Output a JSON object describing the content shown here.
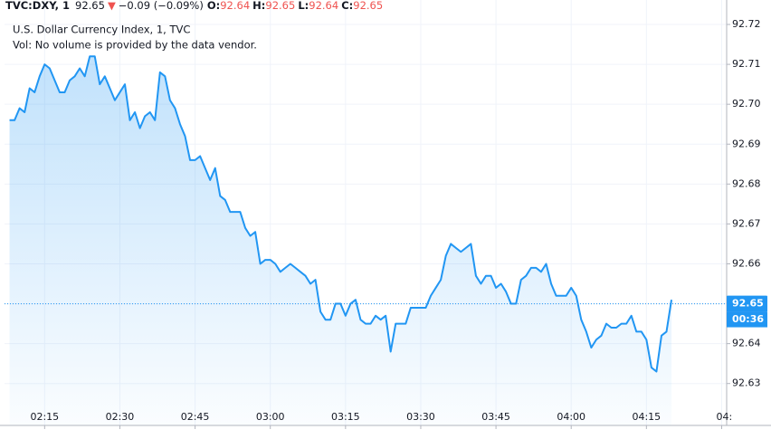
{
  "chart_data": {
    "type": "area",
    "symbol": "TVC:DXY, 1",
    "price": "92.65",
    "change_arrow": "▼",
    "change": "−0.09 (−0.09%)",
    "ohlc": [
      {
        "label": "O:",
        "value": 92.64
      },
      {
        "label": "H:",
        "value": 92.65
      },
      {
        "label": "L:",
        "value": 92.64
      },
      {
        "label": "C:",
        "value": 92.65
      }
    ],
    "volume_note": "Vol: No volume is provided by the data vendor.",
    "series": [
      {
        "name": "U.S. Dollar Currency Index, 1, TVC",
        "color": "#2196f3",
        "x": [
          "02:08",
          "02:09",
          "02:10",
          "02:11",
          "02:12",
          "02:13",
          "02:14",
          "02:15",
          "02:16",
          "02:17",
          "02:18",
          "02:19",
          "02:20",
          "02:21",
          "02:22",
          "02:23",
          "02:24",
          "02:25",
          "02:26",
          "02:27",
          "02:28",
          "02:29",
          "02:30",
          "02:31",
          "02:32",
          "02:33",
          "02:34",
          "02:35",
          "02:36",
          "02:37",
          "02:38",
          "02:39",
          "02:40",
          "02:41",
          "02:42",
          "02:43",
          "02:44",
          "02:45",
          "02:46",
          "02:47",
          "02:48",
          "02:49",
          "02:50",
          "02:51",
          "02:52",
          "02:53",
          "02:54",
          "02:55",
          "02:56",
          "02:57",
          "02:58",
          "02:59",
          "03:00",
          "03:01",
          "03:02",
          "03:03",
          "03:04",
          "03:05",
          "03:06",
          "03:07",
          "03:08",
          "03:09",
          "03:10",
          "03:11",
          "03:12",
          "03:13",
          "03:14",
          "03:15",
          "03:16",
          "03:17",
          "03:18",
          "03:19",
          "03:20",
          "03:21",
          "03:22",
          "03:23",
          "03:24",
          "03:25",
          "03:26",
          "03:27",
          "03:28",
          "03:29",
          "03:30",
          "03:31",
          "03:32",
          "03:33",
          "03:34",
          "03:35",
          "03:36",
          "03:37",
          "03:38",
          "03:39",
          "03:40",
          "03:41",
          "03:42",
          "03:43",
          "03:44",
          "03:45",
          "03:46",
          "03:47",
          "03:48",
          "03:49",
          "03:50",
          "03:51",
          "03:52",
          "03:53",
          "03:54",
          "03:55",
          "03:56",
          "03:57",
          "03:58",
          "03:59",
          "04:00",
          "04:01",
          "04:02",
          "04:03",
          "04:04",
          "04:05",
          "04:06",
          "04:07",
          "04:08",
          "04:09",
          "04:10",
          "04:11",
          "04:12",
          "04:13",
          "04:14",
          "04:15",
          "04:16",
          "04:17",
          "04:18",
          "04:19",
          "04:20"
        ],
        "values": [
          92.696,
          92.696,
          92.699,
          92.698,
          92.704,
          92.703,
          92.707,
          92.71,
          92.709,
          92.706,
          92.703,
          92.703,
          92.706,
          92.707,
          92.709,
          92.707,
          92.712,
          92.712,
          92.705,
          92.707,
          92.704,
          92.701,
          92.703,
          92.705,
          92.696,
          92.698,
          92.694,
          92.697,
          92.698,
          92.696,
          92.708,
          92.707,
          92.701,
          92.699,
          92.695,
          92.692,
          92.686,
          92.686,
          92.687,
          92.684,
          92.681,
          92.684,
          92.677,
          92.676,
          92.673,
          92.673,
          92.673,
          92.669,
          92.667,
          92.668,
          92.66,
          92.661,
          92.661,
          92.66,
          92.658,
          92.659,
          92.66,
          92.659,
          92.658,
          92.657,
          92.655,
          92.656,
          92.648,
          92.646,
          92.646,
          92.65,
          92.65,
          92.647,
          92.65,
          92.651,
          92.646,
          92.645,
          92.645,
          92.647,
          92.646,
          92.647,
          92.638,
          92.645,
          92.645,
          92.645,
          92.649,
          92.649,
          92.649,
          92.649,
          92.652,
          92.654,
          92.656,
          92.662,
          92.665,
          92.664,
          92.663,
          92.664,
          92.665,
          92.657,
          92.655,
          92.657,
          92.657,
          92.654,
          92.655,
          92.653,
          92.65,
          92.65,
          92.656,
          92.657,
          92.659,
          92.659,
          92.658,
          92.66,
          92.655,
          92.652,
          92.652,
          92.652,
          92.654,
          92.652,
          92.646,
          92.643,
          92.639,
          92.641,
          92.642,
          92.645,
          92.644,
          92.644,
          92.645,
          92.645,
          92.647,
          92.643,
          92.643,
          92.641,
          92.634,
          92.633,
          92.642,
          92.643,
          92.651
        ]
      }
    ],
    "xlim": [
      "02:07",
      "04:31"
    ],
    "xticks": [
      "02:15",
      "02:30",
      "02:45",
      "03:00",
      "03:15",
      "03:30",
      "03:45",
      "04:00",
      "04:15",
      {
        "value": "04:30",
        "label": "04:"
      }
    ],
    "ylim": [
      92.6195,
      92.7225
    ],
    "yticks": [
      92.63,
      92.64,
      92.65,
      92.66,
      92.67,
      92.68,
      92.69,
      {
        "value": 92.7,
        "label": "92.70"
      },
      92.71,
      92.72
    ],
    "grid": true,
    "last_price": 92.65,
    "countdown": "00:36"
  }
}
